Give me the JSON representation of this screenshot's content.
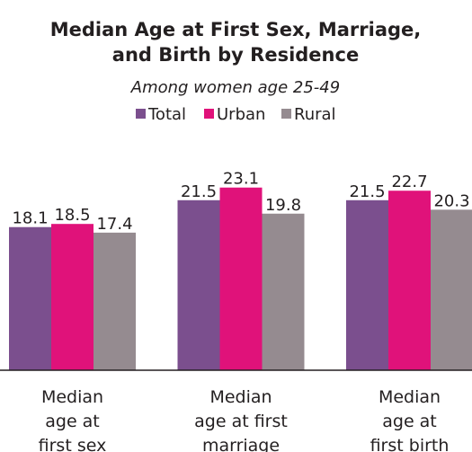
{
  "chart_data": {
    "type": "bar",
    "title": "Median Age at First Sex, Marriage,\nand Birth by Residence",
    "subtitle": "Among women age 25-49",
    "categories": [
      "Median\nage at\nfirst sex",
      "Median\nage at first\nmarriage",
      "Median\nage at\nfirst birth"
    ],
    "series": [
      {
        "name": "Total",
        "color": "#7b4f8e",
        "values": [
          18.1,
          21.5,
          21.5
        ]
      },
      {
        "name": "Urban",
        "color": "#e0127a",
        "values": [
          18.5,
          23.1,
          22.7
        ]
      },
      {
        "name": "Rural",
        "color": "#958b90",
        "values": [
          17.4,
          19.8,
          20.3
        ]
      }
    ],
    "ylim": [
      0,
      25
    ]
  }
}
